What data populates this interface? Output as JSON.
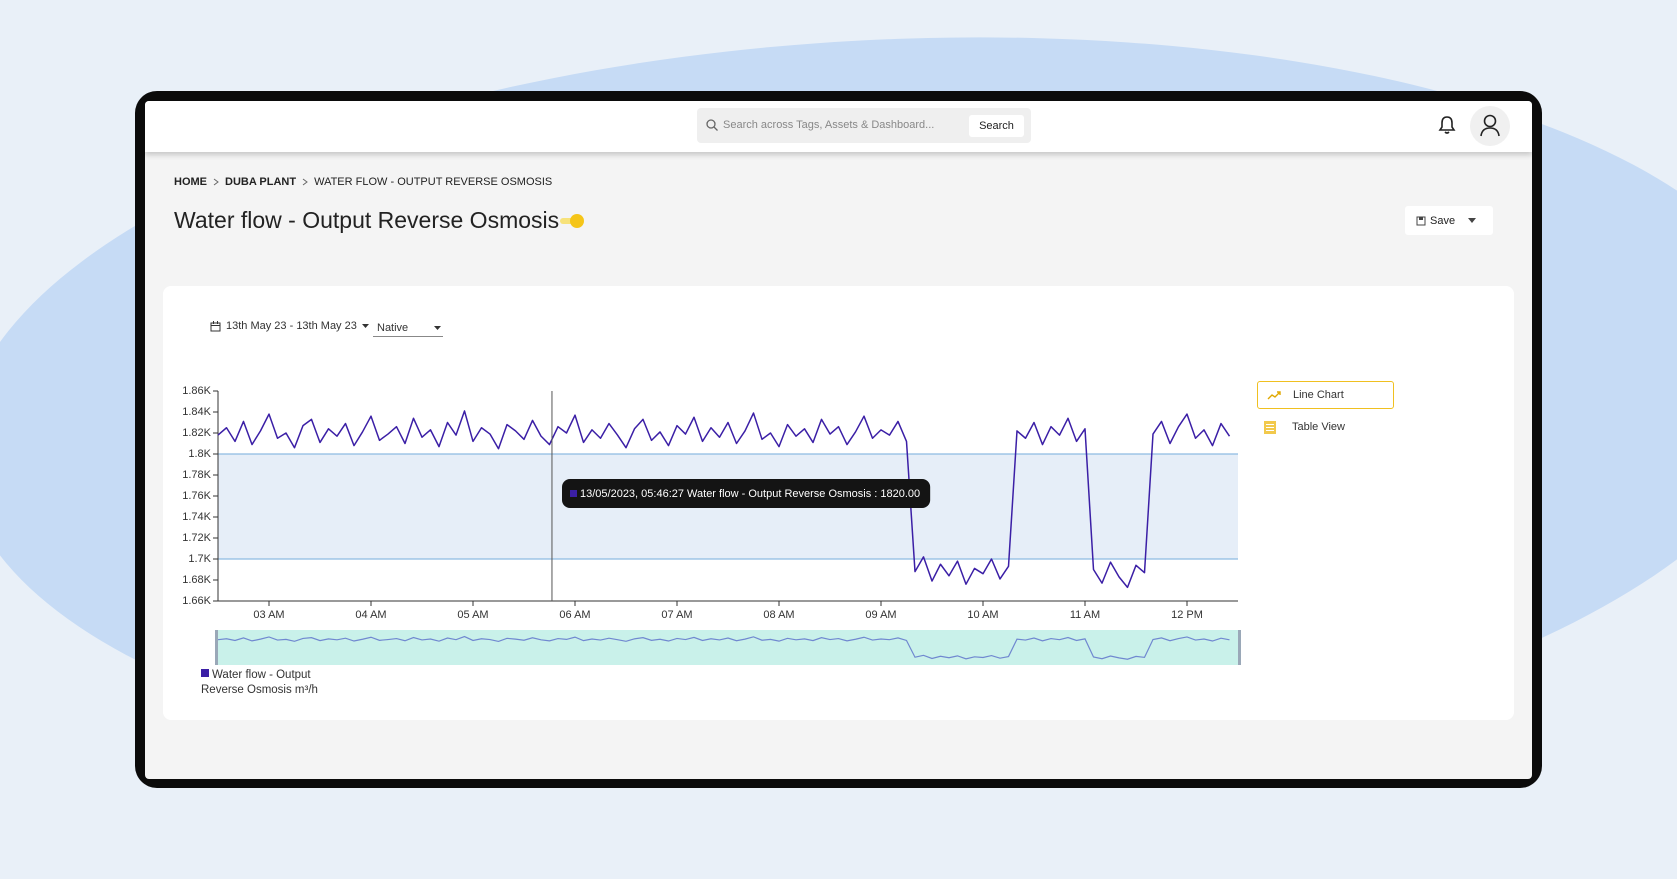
{
  "header": {
    "search_placeholder": "Search across Tags, Assets & Dashboard...",
    "search_button": "Search"
  },
  "breadcrumb": [
    "HOME",
    "DUBA PLANT",
    "WATER FLOW - OUTPUT REVERSE OSMOSIS"
  ],
  "page_title": "Water flow - Output Reverse Osmosis",
  "save_button": "Save",
  "controls": {
    "date_range": "13th May 23 - 13th May 23",
    "aggregation": "Native"
  },
  "views": [
    "Line Chart",
    "Table View"
  ],
  "chart_data": {
    "type": "line",
    "x": [
      150,
      155,
      160,
      165,
      170,
      175,
      180,
      185,
      190,
      195,
      200,
      205,
      210,
      215,
      220,
      225,
      230,
      235,
      240,
      245,
      250,
      255,
      260,
      265,
      270,
      275,
      280,
      285,
      290,
      295,
      300,
      305,
      310,
      315,
      320,
      325,
      330,
      335,
      340,
      345,
      350,
      355,
      360,
      365,
      370,
      375,
      380,
      385,
      390,
      395,
      400,
      405,
      410,
      415,
      420,
      425,
      430,
      435,
      440,
      445,
      450,
      455,
      460,
      465,
      470,
      475,
      480,
      485,
      490,
      495,
      500,
      505,
      510,
      515,
      520,
      525,
      530,
      535,
      540,
      545,
      550,
      555,
      560,
      565,
      570,
      575,
      580,
      585,
      590,
      595,
      600,
      605,
      610,
      615,
      620,
      625,
      630,
      635,
      640,
      645,
      650,
      655,
      660,
      665,
      670,
      675,
      680,
      685,
      690,
      695,
      700,
      705,
      710,
      715,
      720,
      725,
      730,
      735,
      740,
      745
    ],
    "xlim": [
      150,
      750
    ],
    "xticks": [
      {
        "value": 180,
        "label": "03 AM"
      },
      {
        "value": 240,
        "label": "04 AM"
      },
      {
        "value": 300,
        "label": "05 AM"
      },
      {
        "value": 360,
        "label": "06 AM"
      },
      {
        "value": 420,
        "label": "07 AM"
      },
      {
        "value": 480,
        "label": "08 AM"
      },
      {
        "value": 540,
        "label": "09 AM"
      },
      {
        "value": 600,
        "label": "10 AM"
      },
      {
        "value": 660,
        "label": "11 AM"
      },
      {
        "value": 720,
        "label": "12 PM"
      }
    ],
    "ylim": [
      1660,
      1860
    ],
    "yticks": [
      {
        "value": 1660,
        "label": "1.66K"
      },
      {
        "value": 1680,
        "label": "1.68K"
      },
      {
        "value": 1700,
        "label": "1.7K"
      },
      {
        "value": 1720,
        "label": "1.72K"
      },
      {
        "value": 1740,
        "label": "1.74K"
      },
      {
        "value": 1760,
        "label": "1.76K"
      },
      {
        "value": 1780,
        "label": "1.78K"
      },
      {
        "value": 1800,
        "label": "1.8K"
      },
      {
        "value": 1820,
        "label": "1.82K"
      },
      {
        "value": 1840,
        "label": "1.84K"
      },
      {
        "value": 1860,
        "label": "1.86K"
      }
    ],
    "series": [
      {
        "name": "Water flow - Output Reverse Osmosis m³/h",
        "color": "#3b1fa6",
        "values": [
          1818,
          1825,
          1812,
          1831,
          1809,
          1822,
          1838,
          1815,
          1820,
          1806,
          1827,
          1833,
          1811,
          1824,
          1817,
          1829,
          1808,
          1821,
          1836,
          1813,
          1819,
          1826,
          1810,
          1834,
          1816,
          1823,
          1807,
          1830,
          1818,
          1841,
          1812,
          1825,
          1819,
          1805,
          1828,
          1822,
          1814,
          1832,
          1817,
          1809,
          1826,
          1820,
          1837,
          1811,
          1823,
          1815,
          1829,
          1818,
          1806,
          1824,
          1833,
          1813,
          1821,
          1808,
          1827,
          1819,
          1835,
          1812,
          1825,
          1816,
          1830,
          1810,
          1822,
          1839,
          1814,
          1820,
          1807,
          1828,
          1817,
          1824,
          1811,
          1833,
          1819,
          1826,
          1809,
          1821,
          1836,
          1815,
          1823,
          1818,
          1831,
          1812,
          1688,
          1702,
          1679,
          1695,
          1684,
          1698,
          1676,
          1691,
          1686,
          1700,
          1681,
          1693,
          1822,
          1815,
          1830,
          1809,
          1826,
          1818,
          1834,
          1812,
          1824,
          1690,
          1677,
          1697,
          1683,
          1673,
          1694,
          1687,
          1819,
          1831,
          1810,
          1826,
          1838,
          1815,
          1823,
          1808,
          1829,
          1817
        ]
      }
    ],
    "plot_band": [
      1700,
      1800
    ],
    "crosshair_x": 346.45,
    "tooltip": "13/05/2023, 05:46:27 Water flow - Output Reverse Osmosis : 1820.00"
  }
}
